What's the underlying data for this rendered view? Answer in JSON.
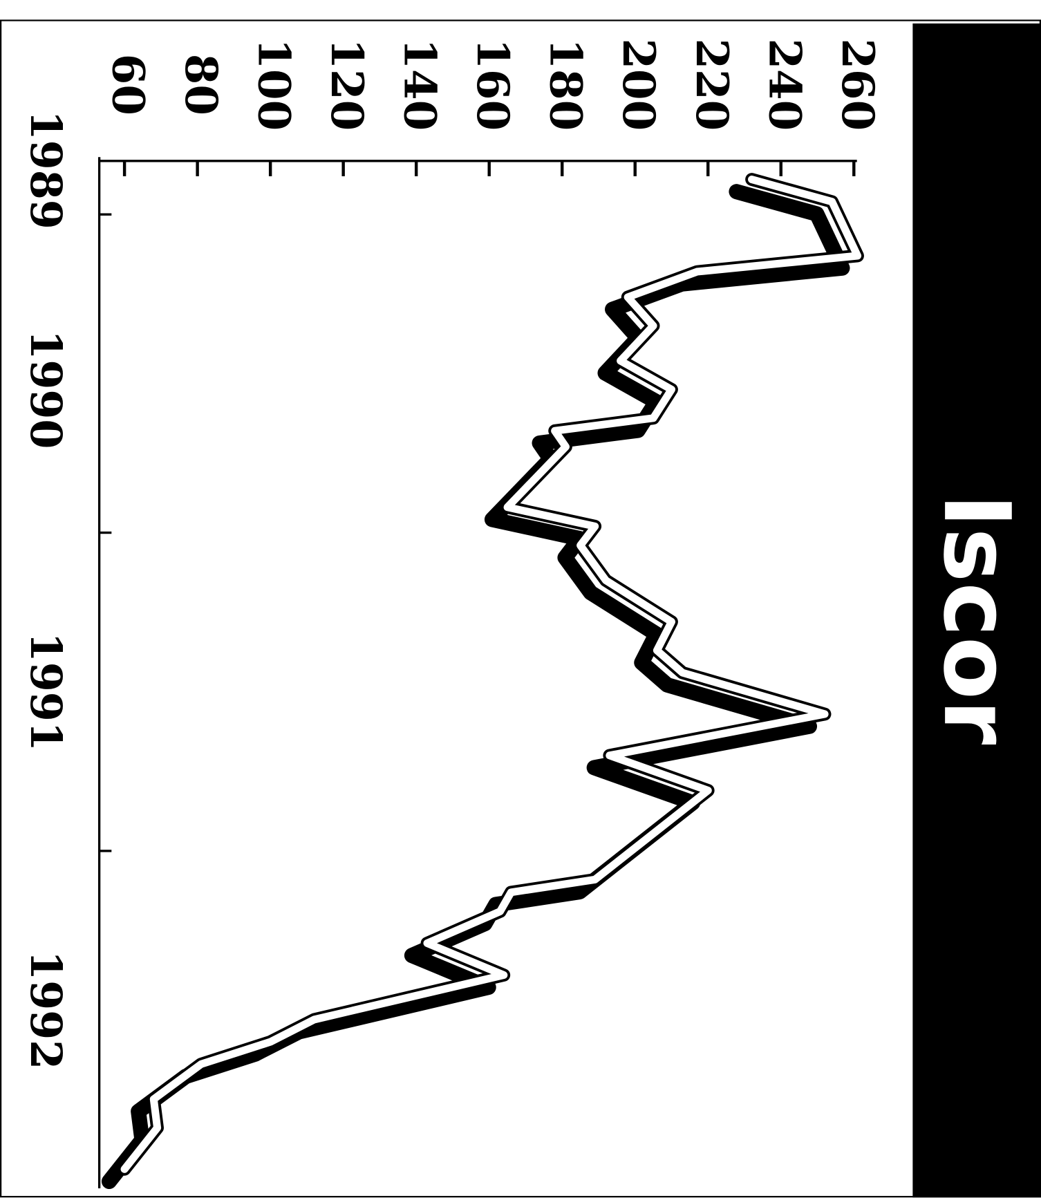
{
  "chart_data": {
    "type": "line",
    "title": "Iscor",
    "color": "#ffffff",
    "x": [
      1989.89,
      1989.96,
      1990.13,
      1990.18,
      1990.26,
      1990.35,
      1990.46,
      1990.55,
      1990.64,
      1990.68,
      1990.73,
      1990.92,
      1990.98,
      1991.04,
      1991.15,
      1991.28,
      1991.37,
      1991.44,
      1991.57,
      1991.7,
      1991.81,
      1992.09,
      1992.13,
      1992.19,
      1992.29,
      1992.39,
      1992.53,
      1992.6,
      1992.67,
      1992.78,
      1992.87,
      1993.0
    ],
    "values": [
      232,
      254,
      261,
      217,
      198,
      205,
      196,
      210,
      205,
      178,
      181,
      165,
      189,
      185,
      192,
      210,
      206,
      213,
      252,
      193,
      220,
      189,
      166,
      163,
      143,
      164,
      112,
      100,
      81,
      68,
      69,
      60
    ],
    "ylim": [
      60,
      260
    ],
    "yticks": [
      60,
      80,
      100,
      120,
      140,
      160,
      180,
      200,
      220,
      240,
      260
    ],
    "xlim": [
      1989.82,
      1993.06
    ],
    "xticks": [
      {
        "value": 1989.86,
        "label": "1989"
      },
      {
        "value": 1990.55,
        "label": "1990"
      },
      {
        "value": 1991.5,
        "label": "1991"
      },
      {
        "value": 1992.5,
        "label": "1992"
      }
    ],
    "xminorticks": [
      1990,
      1991,
      1992
    ]
  }
}
